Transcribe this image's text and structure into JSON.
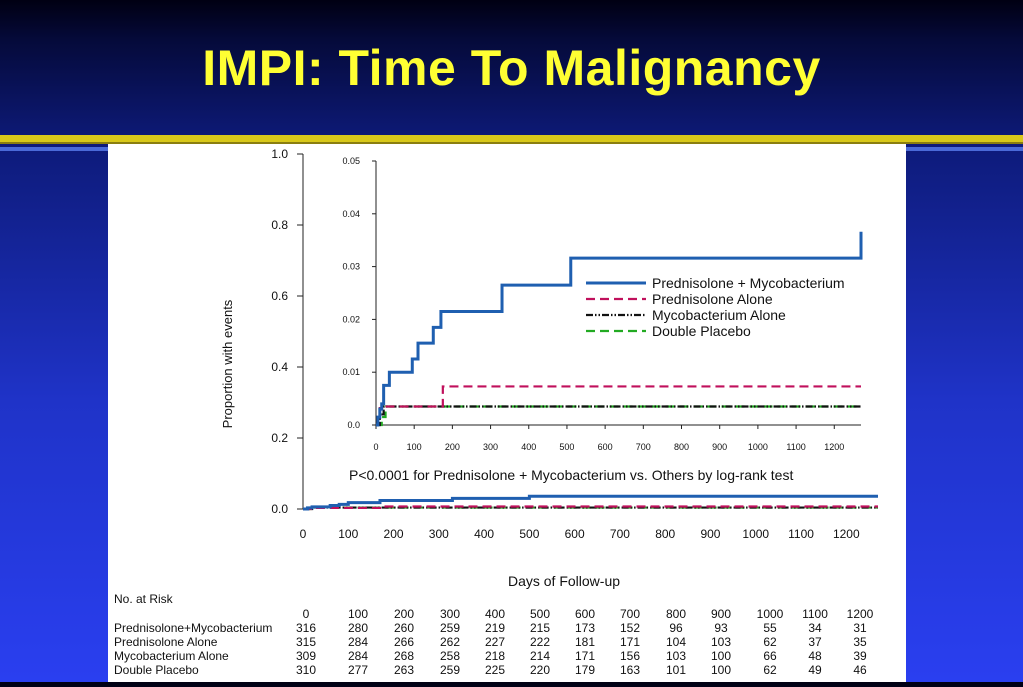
{
  "slide": {
    "title": "IMPI: Time To Malignancy",
    "accent_color": "#ffff33",
    "rule_color": "#d8c81a"
  },
  "chart_data": [
    {
      "type": "line",
      "role": "main",
      "xlabel": "Days of Follow-up",
      "ylabel": "Proportion with events",
      "xlim": [
        0,
        1270
      ],
      "ylim": [
        0,
        1.0
      ],
      "x_ticks": [
        0,
        100,
        200,
        300,
        400,
        500,
        600,
        700,
        800,
        900,
        1000,
        1100,
        1200
      ],
      "y_ticks": [
        "0.0",
        "0.2",
        "0.4",
        "0.6",
        "0.8",
        "1.0"
      ],
      "grid": false,
      "annotation": "P<0.0001 for Prednisolone + Mycobacterium vs. Others by log-rank test",
      "series": [
        {
          "name": "Prednisolone + Mycobacterium",
          "color": "#1f5fb0",
          "style": "solid",
          "x": [
            0,
            10,
            20,
            60,
            80,
            100,
            170,
            330,
            500,
            1270
          ],
          "y": [
            0,
            0.003,
            0.006,
            0.01,
            0.013,
            0.018,
            0.024,
            0.03,
            0.036,
            0.036
          ]
        },
        {
          "name": "Prednisolone Alone",
          "color": "#c0105c",
          "style": "dashed",
          "x": [
            0,
            20,
            170,
            1270
          ],
          "y": [
            0,
            0.003,
            0.007,
            0.007
          ]
        },
        {
          "name": "Mycobacterium Alone",
          "color": "#111111",
          "style": "dashdot",
          "x": [
            0,
            20,
            1270
          ],
          "y": [
            0,
            0.004,
            0.004
          ]
        },
        {
          "name": "Double Placebo",
          "color": "#22aa22",
          "style": "dashed",
          "x": [
            0,
            20,
            1270
          ],
          "y": [
            0,
            0.004,
            0.004
          ]
        }
      ]
    },
    {
      "type": "line",
      "role": "inset",
      "xlim": [
        0,
        1270
      ],
      "ylim": [
        0,
        0.05
      ],
      "x_ticks": [
        0,
        100,
        200,
        300,
        400,
        500,
        600,
        700,
        800,
        900,
        1000,
        1100,
        1200
      ],
      "y_ticks": [
        "0.0",
        "0.01",
        "0.02",
        "0.03",
        "0.04",
        "0.05"
      ],
      "legend": "right",
      "series": [
        {
          "name": "Prednisolone + Mycobacterium",
          "color": "#1f5fb0",
          "style": "solid",
          "x": [
            0,
            5,
            10,
            15,
            20,
            35,
            60,
            95,
            110,
            150,
            170,
            330,
            510,
            1270
          ],
          "y": [
            0,
            0.0015,
            0.003,
            0.004,
            0.0075,
            0.01,
            0.01,
            0.0125,
            0.0155,
            0.0185,
            0.0215,
            0.0265,
            0.0316,
            0.0366
          ]
        },
        {
          "name": "Prednisolone Alone",
          "color": "#c0105c",
          "style": "dashed",
          "x": [
            0,
            5,
            10,
            20,
            175,
            1270
          ],
          "y": [
            0,
            0.0015,
            0.0032,
            0.0035,
            0.0073,
            0.0073
          ]
        },
        {
          "name": "Mycobacterium Alone",
          "color": "#111111",
          "style": "dashdot",
          "x": [
            0,
            10,
            20,
            1270
          ],
          "y": [
            0,
            0.002,
            0.0035,
            0.0035
          ]
        },
        {
          "name": "Double Placebo",
          "color": "#22aa22",
          "style": "dashed",
          "x": [
            0,
            15,
            25,
            1270
          ],
          "y": [
            0,
            0.0015,
            0.0035,
            0.0035
          ]
        }
      ]
    },
    {
      "type": "table",
      "role": "at-risk",
      "title": "No. at Risk",
      "columns": [
        "0",
        "100",
        "200",
        "300",
        "400",
        "500",
        "600",
        "700",
        "800",
        "900",
        "1000",
        "1100",
        "1200"
      ],
      "rows": [
        {
          "label": "Prednisolone+Mycobacterium",
          "values": [
            "316",
            "280",
            "260",
            "259",
            "219",
            "215",
            "173",
            "152",
            "96",
            "93",
            "55",
            "34",
            "31"
          ]
        },
        {
          "label": "Prednisolone Alone",
          "values": [
            "315",
            "284",
            "266",
            "262",
            "227",
            "222",
            "181",
            "171",
            "104",
            "103",
            "62",
            "37",
            "35"
          ]
        },
        {
          "label": "Mycobacterium Alone",
          "values": [
            "309",
            "284",
            "268",
            "258",
            "218",
            "214",
            "171",
            "156",
            "103",
            "100",
            "66",
            "48",
            "39"
          ]
        },
        {
          "label": "Double Placebo",
          "values": [
            "310",
            "277",
            "263",
            "259",
            "225",
            "220",
            "179",
            "163",
            "101",
            "100",
            "62",
            "49",
            "46"
          ]
        }
      ]
    }
  ]
}
